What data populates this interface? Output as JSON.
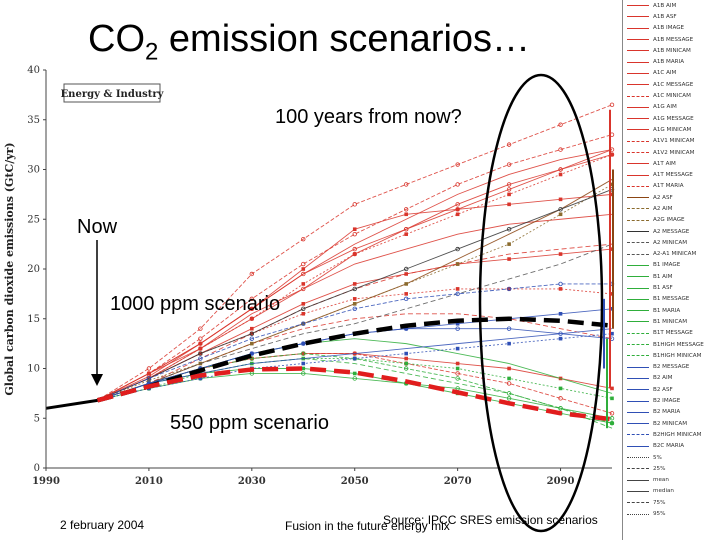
{
  "slide": {
    "title_main": "CO",
    "title_sub": "2",
    "title_rest": " emission scenarios…",
    "annotations": {
      "future": "100 years from now?",
      "now": "Now",
      "ppm1000": "1000 ppm scenario",
      "ppm550": "550 ppm scenario"
    },
    "footer": {
      "date": "2 february 2004",
      "source": "Source: IPCC SRES emission scenarios",
      "talk": "Fusion in the future energy mix"
    }
  },
  "chart_data": {
    "type": "line",
    "title": "Energy & Industry",
    "ylabel": "Global carbon dioxide emissions (GtC/yr)",
    "xlabel": "",
    "xlim": [
      1990,
      2100
    ],
    "ylim": [
      0,
      40
    ],
    "x_ticks": [
      1990,
      2010,
      2030,
      2050,
      2070,
      2090
    ],
    "y_ticks": [
      0,
      5,
      10,
      15,
      20,
      25,
      30,
      35,
      40
    ],
    "x": [
      1990,
      2000,
      2010,
      2020,
      2030,
      2040,
      2050,
      2060,
      2070,
      2080,
      2090,
      2100
    ],
    "series": [
      {
        "name": "A1B AIM",
        "color": "#d9352c",
        "values": [
          6,
          6.8,
          9.5,
          12.5,
          16,
          20,
          24,
          25.5,
          26,
          26.5,
          27,
          27.5
        ]
      },
      {
        "name": "A1B ASF",
        "color": "#d9352c",
        "values": [
          6,
          6.8,
          10,
          14,
          19.5,
          23,
          26.5,
          28.5,
          30.5,
          32.5,
          34.5,
          36.5
        ]
      },
      {
        "name": "A1B IMAGE",
        "color": "#d9352c",
        "values": [
          6,
          6.8,
          9.5,
          12,
          15.5,
          18,
          20.5,
          22,
          23.5,
          24.5,
          25,
          25.5
        ]
      },
      {
        "name": "A1B MESSAGE",
        "color": "#d9352c",
        "values": [
          6,
          6.8,
          9,
          12,
          15,
          18.5,
          21.5,
          23.5,
          25.5,
          27.5,
          29.5,
          31.5
        ]
      },
      {
        "name": "A1B MINICAM",
        "color": "#d9352c",
        "values": [
          6,
          6.8,
          9.2,
          12.5,
          16,
          19.5,
          22,
          24,
          26,
          28,
          30,
          32
        ]
      },
      {
        "name": "A1B MARIA",
        "color": "#d9352c",
        "values": [
          6,
          6.8,
          8.5,
          11,
          13.5,
          16,
          18,
          19.5,
          20.5,
          21.5,
          22,
          22.5
        ]
      },
      {
        "name": "A1C AIM",
        "color": "#d9352c",
        "values": [
          6,
          6.8,
          9,
          11.5,
          14,
          16.5,
          18.5,
          19.5,
          20.5,
          21,
          21.5,
          22
        ]
      },
      {
        "name": "A1C MESSAGE",
        "color": "#d9352c",
        "values": [
          6,
          6.8,
          9.5,
          13,
          17,
          20.5,
          23.5,
          26,
          28.5,
          30.5,
          32,
          33.5
        ]
      },
      {
        "name": "A1C MINICAM",
        "color": "#d9352c",
        "values": [
          6,
          6.8,
          9.5,
          12.5,
          16,
          19.5,
          22.5,
          25,
          27.5,
          29.5,
          31,
          32
        ]
      },
      {
        "name": "A1G AIM",
        "color": "#d9352c",
        "values": [
          6,
          6.8,
          9,
          11.5,
          13.5,
          15.5,
          17,
          17.5,
          18,
          18,
          18,
          17.5
        ]
      },
      {
        "name": "A1G MESSAGE",
        "color": "#d9352c",
        "values": [
          6,
          6.8,
          9,
          12,
          15,
          18,
          21.5,
          24,
          26.5,
          28.5,
          30,
          31.5
        ]
      },
      {
        "name": "A1G MINICAM",
        "color": "#d9352c",
        "values": [
          6,
          6.8,
          8.5,
          10.5,
          12.5,
          14,
          15,
          15.5,
          15.5,
          15,
          14,
          13
        ]
      },
      {
        "name": "A1T AIM",
        "color": "#d9352c",
        "values": [
          6,
          6.8,
          8.5,
          10,
          11,
          11.5,
          11.5,
          11,
          10.5,
          10,
          9,
          8
        ]
      },
      {
        "name": "A1T MESSAGE",
        "color": "#d9352c",
        "values": [
          6,
          6.8,
          8.5,
          10,
          11,
          11.5,
          11.5,
          10.5,
          9.5,
          8.5,
          7,
          5.5
        ]
      },
      {
        "name": "A2 ASF",
        "color": "#8b4513",
        "values": [
          6,
          6.8,
          8.5,
          10.5,
          12.5,
          14.5,
          16.5,
          18.5,
          21,
          23.5,
          26,
          29
        ]
      },
      {
        "name": "A2 AIM",
        "color": "#8b6b2e",
        "values": [
          6,
          6.8,
          8.8,
          10.5,
          12.5,
          14.5,
          16.5,
          18.5,
          20.5,
          22.5,
          25.5,
          28.5
        ]
      },
      {
        "name": "A2 MESSAGE",
        "color": "#333333",
        "values": [
          6,
          6.8,
          9,
          11.5,
          13.5,
          16,
          18,
          20,
          22,
          24,
          26,
          28
        ]
      },
      {
        "name": "A2 MINICAM",
        "color": "#555555",
        "values": [
          6,
          6.8,
          8.5,
          10.5,
          12,
          13.5,
          14.5,
          16,
          17.5,
          19,
          20.5,
          22.5
        ]
      },
      {
        "name": "B1 IMAGE",
        "color": "#2fae3b",
        "values": [
          6,
          6.8,
          8.5,
          9.5,
          10,
          10,
          9.5,
          8.5,
          7.5,
          6.5,
          5.5,
          4.5
        ]
      },
      {
        "name": "B1 AIM",
        "color": "#2fae3b",
        "values": [
          6,
          6.8,
          8.5,
          10,
          11,
          11.5,
          11,
          10,
          9,
          7.5,
          6,
          4.5
        ]
      },
      {
        "name": "B1 ASF",
        "color": "#2fae3b",
        "values": [
          6,
          6.8,
          8.5,
          10,
          11.5,
          12.5,
          13,
          12.5,
          11.5,
          10.5,
          9,
          7.5
        ]
      },
      {
        "name": "B1 MESSAGE",
        "color": "#2fae3b",
        "values": [
          6,
          6.8,
          8,
          9.5,
          10.5,
          11,
          11,
          10.5,
          10,
          9,
          8,
          7
        ]
      },
      {
        "name": "B1 MARIA",
        "color": "#2fae3b",
        "values": [
          6,
          6.8,
          8,
          9,
          9.5,
          9.5,
          9,
          8.5,
          8,
          7,
          6,
          5
        ]
      },
      {
        "name": "B1 MINICAM",
        "color": "#2fae3b",
        "values": [
          6,
          6.8,
          8.5,
          9.5,
          10.5,
          11,
          10.5,
          9.5,
          8.5,
          7.5,
          6,
          4
        ]
      },
      {
        "name": "B2 AIM",
        "color": "#2f4fb5",
        "values": [
          6,
          6.8,
          8.5,
          10,
          11.5,
          12.5,
          13.5,
          14,
          14.5,
          15,
          15.5,
          16
        ]
      },
      {
        "name": "B2 ASF",
        "color": "#2f4fb5",
        "values": [
          6,
          6.8,
          9,
          11,
          13,
          14.5,
          16,
          17,
          17.5,
          18,
          18.5,
          18.5
        ]
      },
      {
        "name": "B2 IMAGE",
        "color": "#2f4fb5",
        "values": [
          6,
          6.8,
          8.5,
          9.5,
          10.5,
          11,
          11.5,
          12,
          12.5,
          13,
          13.5,
          14
        ]
      },
      {
        "name": "B2 MESSAGE",
        "color": "#2f4fb5",
        "values": [
          6,
          6.8,
          8,
          9,
          10,
          10.5,
          11,
          11.5,
          12,
          12.5,
          13,
          13.5
        ]
      },
      {
        "name": "B2 MINICAM",
        "color": "#2f4fb5",
        "values": [
          6,
          6.8,
          8.5,
          10,
          11.5,
          12.5,
          13.5,
          14,
          14,
          14,
          13.5,
          13
        ]
      }
    ],
    "highlight_series": [
      {
        "label": "1000 ppm scenario",
        "color": "#000000",
        "values": [
          6,
          6.8,
          8.2,
          9.8,
          11.3,
          12.5,
          13.5,
          14.3,
          14.8,
          15,
          14.8,
          14.3
        ]
      },
      {
        "label": "550 ppm scenario",
        "color": "#e11d1d",
        "values": [
          6,
          6.8,
          8.2,
          9.3,
          9.9,
          10,
          9.6,
          8.7,
          7.6,
          6.5,
          5.5,
          4.9
        ]
      }
    ],
    "legend_position": "right",
    "legend_entries": [
      {
        "label": "A1B AIM",
        "color": "#d9352c",
        "dash": "solid"
      },
      {
        "label": "A1B ASF",
        "color": "#d9352c",
        "dash": "solid"
      },
      {
        "label": "A1B IMAGE",
        "color": "#d9352c",
        "dash": "solid"
      },
      {
        "label": "A1B MESSAGE",
        "color": "#d9352c",
        "dash": "solid"
      },
      {
        "label": "A1B MINICAM",
        "color": "#d9352c",
        "dash": "solid"
      },
      {
        "label": "A1B MARIA",
        "color": "#d9352c",
        "dash": "solid"
      },
      {
        "label": "A1C AIM",
        "color": "#d9352c",
        "dash": "solid"
      },
      {
        "label": "A1C MESSAGE",
        "color": "#d9352c",
        "dash": "solid"
      },
      {
        "label": "A1C MINICAM",
        "color": "#d9352c",
        "dash": "dashed"
      },
      {
        "label": "A1G AIM",
        "color": "#d9352c",
        "dash": "solid"
      },
      {
        "label": "A1G MESSAGE",
        "color": "#d9352c",
        "dash": "solid"
      },
      {
        "label": "A1G MINICAM",
        "color": "#d9352c",
        "dash": "solid"
      },
      {
        "label": "A1V1 MINICAM",
        "color": "#d9352c",
        "dash": "dashed"
      },
      {
        "label": "A1V2 MINICAM",
        "color": "#d9352c",
        "dash": "dashed"
      },
      {
        "label": "A1T AIM",
        "color": "#d9352c",
        "dash": "solid"
      },
      {
        "label": "A1T MESSAGE",
        "color": "#d9352c",
        "dash": "solid"
      },
      {
        "label": "A1T MARIA",
        "color": "#d9352c",
        "dash": "dashed"
      },
      {
        "label": "A2 ASF",
        "color": "#8b4513",
        "dash": "solid"
      },
      {
        "label": "A2 AIM",
        "color": "#8b6b2e",
        "dash": "dashed"
      },
      {
        "label": "A2G IMAGE",
        "color": "#8b6b2e",
        "dash": "dashed"
      },
      {
        "label": "A2 MESSAGE",
        "color": "#333333",
        "dash": "solid"
      },
      {
        "label": "A2 MINICAM",
        "color": "#555555",
        "dash": "dashed"
      },
      {
        "label": "A2-A1 MINICAM",
        "color": "#555555",
        "dash": "dashed"
      },
      {
        "label": "B1 IMAGE",
        "color": "#2fae3b",
        "dash": "solid"
      },
      {
        "label": "B1 AIM",
        "color": "#2fae3b",
        "dash": "solid"
      },
      {
        "label": "B1 ASF",
        "color": "#2fae3b",
        "dash": "solid"
      },
      {
        "label": "B1 MESSAGE",
        "color": "#2fae3b",
        "dash": "solid"
      },
      {
        "label": "B1 MARIA",
        "color": "#2fae3b",
        "dash": "solid"
      },
      {
        "label": "B1 MINICAM",
        "color": "#2fae3b",
        "dash": "solid"
      },
      {
        "label": "B1T MESSAGE",
        "color": "#2fae3b",
        "dash": "dashed"
      },
      {
        "label": "B1HIGH MESSAGE",
        "color": "#2fae3b",
        "dash": "dashed"
      },
      {
        "label": "B1HIGH MINICAM",
        "color": "#2fae3b",
        "dash": "dashed"
      },
      {
        "label": "B2 MESSAGE",
        "color": "#2f4fb5",
        "dash": "solid"
      },
      {
        "label": "B2 AIM",
        "color": "#2f4fb5",
        "dash": "solid"
      },
      {
        "label": "B2 ASF",
        "color": "#2f4fb5",
        "dash": "solid"
      },
      {
        "label": "B2 IMAGE",
        "color": "#2f4fb5",
        "dash": "solid"
      },
      {
        "label": "B2 MARIA",
        "color": "#2f4fb5",
        "dash": "solid"
      },
      {
        "label": "B2 MINICAM",
        "color": "#2f4fb5",
        "dash": "solid"
      },
      {
        "label": "B2HIGH MINICAM",
        "color": "#2f4fb5",
        "dash": "dashed"
      },
      {
        "label": "B2C MARIA",
        "color": "#2f4fb5",
        "dash": "solid"
      },
      {
        "label": "5%",
        "color": "#444444",
        "dash": "dotted"
      },
      {
        "label": "25%",
        "color": "#444444",
        "dash": "dashed"
      },
      {
        "label": "mean",
        "color": "#444444",
        "dash": "solid"
      },
      {
        "label": "median",
        "color": "#444444",
        "dash": "solid"
      },
      {
        "label": "75%",
        "color": "#444444",
        "dash": "dashed"
      },
      {
        "label": "95%",
        "color": "#444444",
        "dash": "dotted"
      }
    ]
  }
}
